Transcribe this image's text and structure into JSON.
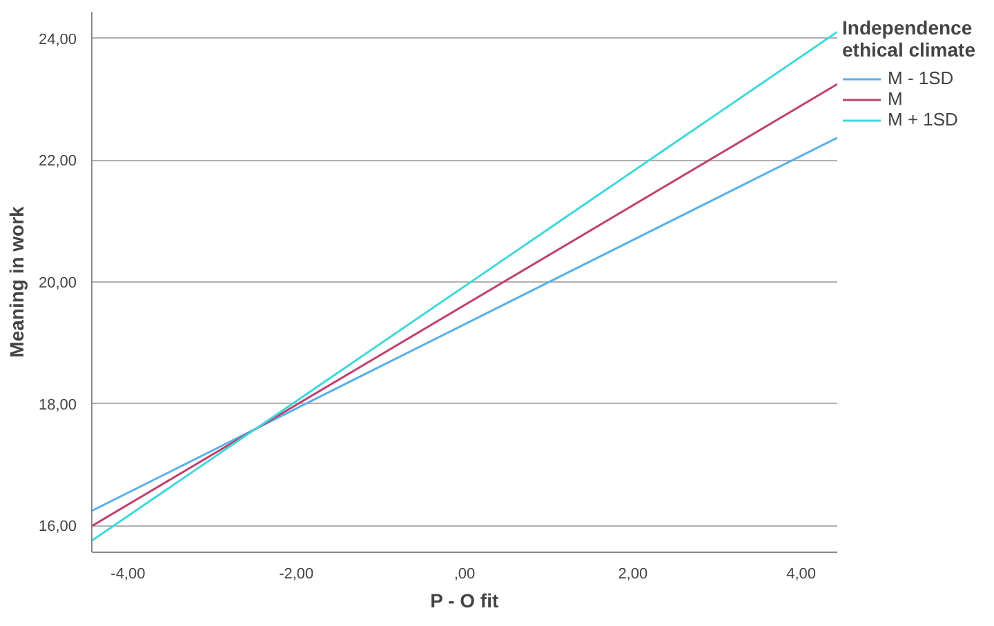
{
  "chart_data": {
    "type": "line",
    "xlabel": "P - O fit",
    "ylabel": "Meaning in work",
    "legend_title": "Independence ethical climate",
    "x": [
      -4.43,
      4.43
    ],
    "series": [
      {
        "name": "M - 1SD",
        "color": "#5ab0ea",
        "values": [
          16.24,
          22.37
        ]
      },
      {
        "name": "M",
        "color": "#c0406e",
        "values": [
          15.99,
          23.25
        ]
      },
      {
        "name": "M + 1SD",
        "color": "#3fd8da",
        "values": [
          15.75,
          24.11
        ]
      }
    ],
    "xlim": [
      -4.43,
      4.43
    ],
    "ylim": [
      15.56,
      24.44
    ],
    "xticks": [
      {
        "value": -4,
        "label": "-4,00"
      },
      {
        "value": -2,
        "label": "-2,00"
      },
      {
        "value": 0,
        "label": ",00"
      },
      {
        "value": 2,
        "label": "2,00"
      },
      {
        "value": 4,
        "label": "4,00"
      }
    ],
    "yticks": [
      {
        "value": 16,
        "label": "16,00"
      },
      {
        "value": 18,
        "label": "18,00"
      },
      {
        "value": 20,
        "label": "20,00"
      },
      {
        "value": 22,
        "label": "22,00"
      },
      {
        "value": 24,
        "label": "24,00"
      }
    ],
    "grid": "y",
    "legend": "right",
    "marker": "none",
    "line_style": "solid"
  }
}
